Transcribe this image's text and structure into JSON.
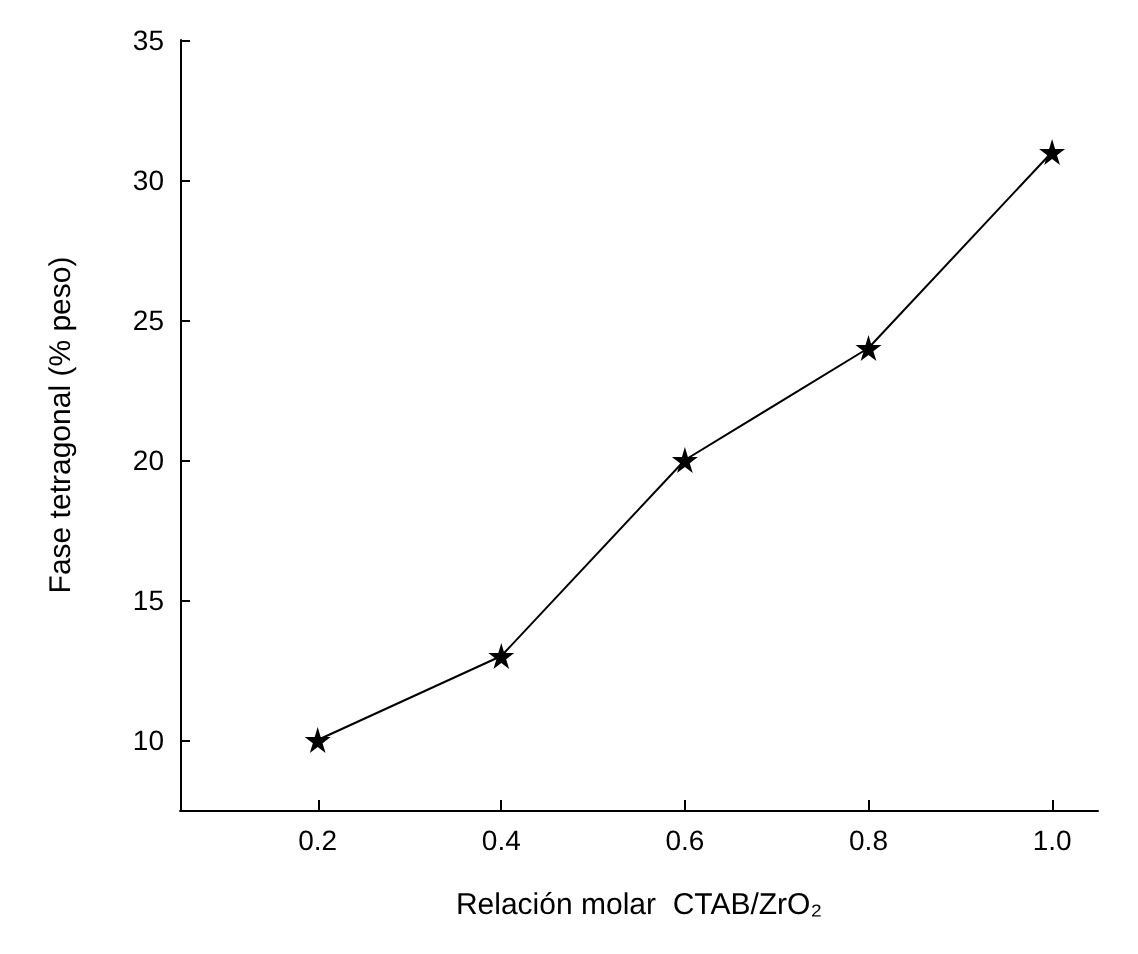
{
  "chart_data": {
    "type": "line",
    "xlabel": "Relación molar  CTAB/ZrO₂",
    "ylabel": "Fase tetragonal (% peso)",
    "x": [
      0.2,
      0.4,
      0.6,
      0.8,
      1.0
    ],
    "series": [
      {
        "color": "#000000",
        "values": [
          10,
          13,
          20,
          24,
          31
        ]
      }
    ],
    "xlim": [
      0.05,
      1.05
    ],
    "xticks": [
      {
        "value": 0.2,
        "label": "0.2"
      },
      {
        "value": 0.4,
        "label": "0.4"
      },
      {
        "value": 0.6,
        "label": "0.6"
      },
      {
        "value": 0.8,
        "label": "0.8"
      },
      {
        "value": 1.0,
        "label": "1.0"
      }
    ],
    "ylim": [
      7.5,
      35
    ],
    "yticks": [
      10,
      15,
      20,
      25,
      30,
      35
    ],
    "grid": false,
    "marker": "star",
    "line_style": "solid"
  }
}
